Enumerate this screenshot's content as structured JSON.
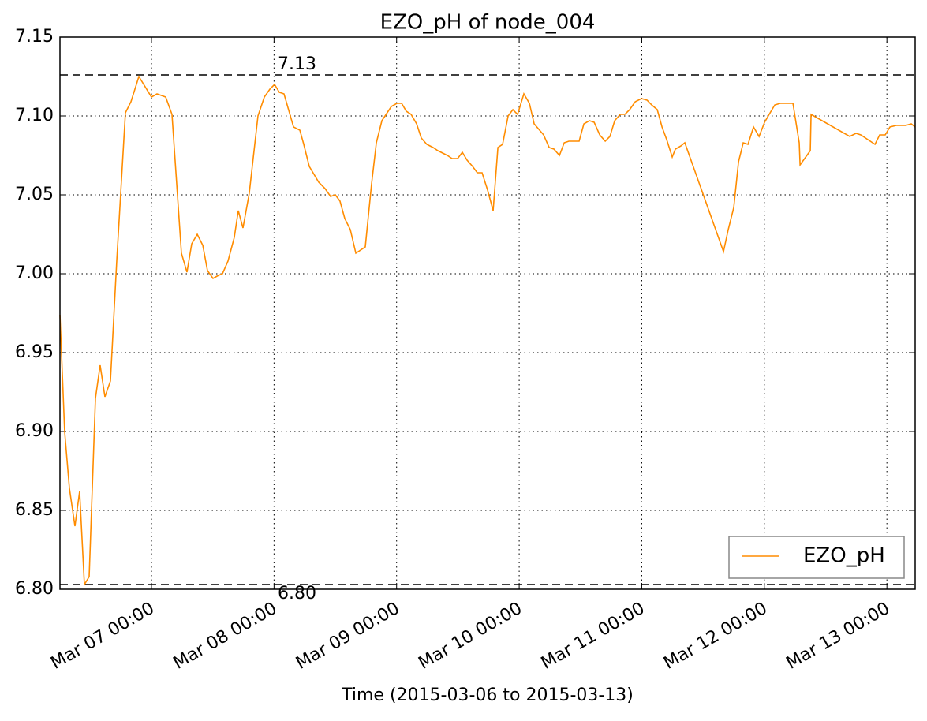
{
  "chart_data": {
    "type": "line",
    "title": "EZO_pH of node_004",
    "xlabel": "Time (2015-03-06 to 2015-03-13)",
    "xlim": [
      "Mar 06 06:05",
      "Mar 13 05:32"
    ],
    "xticks": [
      "Mar 07 00:00",
      "Mar 08 00:00",
      "Mar 09 00:00",
      "Mar 10 00:00",
      "Mar 11 00:00",
      "Mar 12 00:00",
      "Mar 13 00:00"
    ],
    "ylim": [
      6.8,
      7.15
    ],
    "yticks": [
      {
        "value": 6.8,
        "label": "6.80"
      },
      6.85,
      {
        "value": 6.9,
        "label": "6.90"
      },
      6.95,
      {
        "value": 7.0,
        "label": "7.00"
      },
      7.05,
      {
        "value": 7.1,
        "label": "7.10"
      },
      7.15
    ],
    "grid": true,
    "legend": "lower right",
    "hlines": [
      {
        "value": 7.126,
        "label": "7.13"
      },
      {
        "value": 6.803,
        "label": "6.80"
      }
    ],
    "x": [
      "Mar 06 06:05",
      "Mar 06 07:00",
      "Mar 06 07:56",
      "Mar 06 09:01",
      "Mar 06 09:56",
      "Mar 06 10:52",
      "Mar 06 11:48",
      "Mar 06 13:02",
      "Mar 06 13:57",
      "Mar 06 14:53",
      "Mar 06 15:58",
      "Mar 06 17:12",
      "Mar 06 18:54",
      "Mar 06 19:59",
      "Mar 06 21:32",
      "Mar 07 00:00",
      "Mar 07 01:05",
      "Mar 07 02:47",
      "Mar 07 04:01",
      "Mar 07 05:52",
      "Mar 07 06:57",
      "Mar 07 07:53",
      "Mar 07 08:58",
      "Mar 07 10:03",
      "Mar 07 10:58",
      "Mar 07 12:03",
      "Mar 07 13:08",
      "Mar 07 13:54",
      "Mar 07 14:59",
      "Mar 07 16:13",
      "Mar 07 17:00",
      "Mar 07 17:55",
      "Mar 07 19:09",
      "Mar 07 20:51",
      "Mar 07 22:06",
      "Mar 07 23:11",
      "Mar 08 00:06",
      "Mar 08 01:02",
      "Mar 08 01:57",
      "Mar 08 03:49",
      "Mar 08 05:03",
      "Mar 08 05:49",
      "Mar 08 06:54",
      "Mar 08 08:45",
      "Mar 08 09:59",
      "Mar 08 11:04",
      "Mar 08 12:00",
      "Mar 08 12:55",
      "Mar 08 13:51",
      "Mar 08 14:56",
      "Mar 08 16:01",
      "Mar 08 17:52",
      "Mar 08 19:06",
      "Mar 08 20:02",
      "Mar 08 21:07",
      "Mar 08 22:58",
      "Mar 09 00:03",
      "Mar 09 00:59",
      "Mar 09 01:54",
      "Mar 09 02:50",
      "Mar 09 03:55",
      "Mar 09 04:50",
      "Mar 09 05:55",
      "Mar 09 07:09",
      "Mar 09 08:05",
      "Mar 09 09:56",
      "Mar 09 10:52",
      "Mar 09 11:57",
      "Mar 09 12:52",
      "Mar 09 13:48",
      "Mar 09 14:53",
      "Mar 09 15:48",
      "Mar 09 16:44",
      "Mar 09 17:49",
      "Mar 09 18:54",
      "Mar 09 19:50",
      "Mar 09 20:45",
      "Mar 09 21:50",
      "Mar 09 22:46",
      "Mar 09 23:41",
      "Mar 10 00:55",
      "Mar 10 02:00",
      "Mar 10 02:56",
      "Mar 10 04:47",
      "Mar 10 05:52",
      "Mar 10 06:48",
      "Mar 10 07:53",
      "Mar 10 08:49",
      "Mar 10 09:44",
      "Mar 10 11:44",
      "Mar 10 12:40",
      "Mar 10 13:45",
      "Mar 10 14:41",
      "Mar 10 15:46",
      "Mar 10 16:51",
      "Mar 10 17:46",
      "Mar 10 18:42",
      "Mar 10 19:47",
      "Mar 10 20:42",
      "Mar 10 21:38",
      "Mar 10 22:43",
      "Mar 10 23:57",
      "Mar 11 01:02",
      "Mar 11 01:57",
      "Mar 11 03:02",
      "Mar 11 03:58",
      "Mar 11 04:53",
      "Mar 11 05:58",
      "Mar 11 06:35",
      "Mar 11 07:40",
      "Mar 11 08:26",
      "Mar 11 16:00",
      "Mar 11 16:56",
      "Mar 11 18:01",
      "Mar 11 18:57",
      "Mar 11 19:52",
      "Mar 11 20:48",
      "Mar 11 21:53",
      "Mar 11 22:58",
      "Mar 12 00:03",
      "Mar 12 01:08",
      "Mar 12 02:03",
      "Mar 12 03:08",
      "Mar 12 05:36",
      "Mar 12 06:50",
      "Mar 12 07:00",
      "Mar 12 09:00",
      "Mar 12 09:09",
      "Mar 12 16:43",
      "Mar 12 17:57",
      "Mar 12 18:53",
      "Mar 12 21:40",
      "Mar 12 22:35",
      "Mar 12 23:40",
      "Mar 13 00:36",
      "Mar 13 01:50",
      "Mar 13 03:41",
      "Mar 13 04:46",
      "Mar 13 05:32"
    ],
    "series": [
      {
        "name": "EZO_pH",
        "color": "#ff8c00",
        "values": [
          6.974,
          6.9,
          6.864,
          6.84,
          6.862,
          6.803,
          6.808,
          6.921,
          6.942,
          6.922,
          6.932,
          7.008,
          7.102,
          7.109,
          7.125,
          7.112,
          7.114,
          7.112,
          7.101,
          7.013,
          7.001,
          7.019,
          7.025,
          7.018,
          7.002,
          6.997,
          6.999,
          7.0,
          7.008,
          7.023,
          7.04,
          7.029,
          7.051,
          7.1,
          7.112,
          7.117,
          7.12,
          7.115,
          7.114,
          7.093,
          7.091,
          7.082,
          7.068,
          7.058,
          7.054,
          7.049,
          7.05,
          7.046,
          7.035,
          7.028,
          7.013,
          7.017,
          7.057,
          7.083,
          7.097,
          7.106,
          7.108,
          7.108,
          7.103,
          7.101,
          7.095,
          7.086,
          7.082,
          7.08,
          7.078,
          7.075,
          7.073,
          7.073,
          7.077,
          7.072,
          7.068,
          7.064,
          7.064,
          7.053,
          7.04,
          7.08,
          7.082,
          7.1,
          7.104,
          7.101,
          7.114,
          7.108,
          7.095,
          7.088,
          7.08,
          7.079,
          7.075,
          7.083,
          7.084,
          7.084,
          7.095,
          7.097,
          7.096,
          7.088,
          7.084,
          7.087,
          7.097,
          7.101,
          7.101,
          7.104,
          7.109,
          7.111,
          7.11,
          7.107,
          7.104,
          7.093,
          7.085,
          7.074,
          7.079,
          7.081,
          7.083,
          7.014,
          7.028,
          7.042,
          7.071,
          7.083,
          7.082,
          7.093,
          7.087,
          7.096,
          7.102,
          7.107,
          7.108,
          7.108,
          7.083,
          7.069,
          7.078,
          7.101,
          7.087,
          7.089,
          7.088,
          7.082,
          7.088,
          7.088,
          7.093,
          7.094,
          7.094,
          7.095,
          7.093
        ]
      }
    ]
  }
}
